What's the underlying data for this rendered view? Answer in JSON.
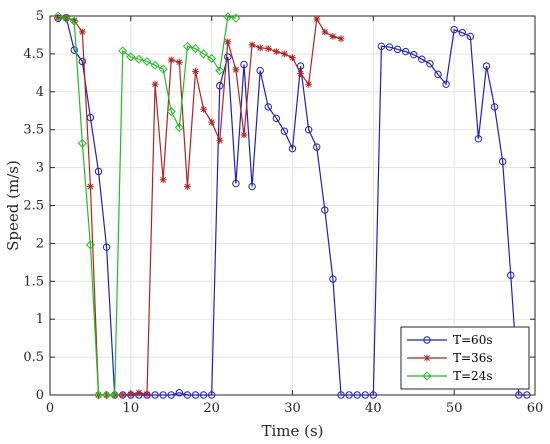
{
  "chart_data": {
    "type": "line",
    "title": "",
    "xlabel": "Time (s)",
    "ylabel": "Speed (m/s)",
    "xlim": [
      0,
      60
    ],
    "ylim": [
      0,
      5
    ],
    "xticks": [
      0,
      10,
      20,
      30,
      40,
      50,
      60
    ],
    "yticks": [
      0,
      0.5,
      1,
      1.5,
      2,
      2.5,
      3,
      3.5,
      4,
      4.5,
      5
    ],
    "xtick_labels": [
      "0",
      "10",
      "20",
      "30",
      "40",
      "50",
      "60"
    ],
    "ytick_labels": [
      "0",
      "0.5",
      "1",
      "1.5",
      "2",
      "2.5",
      "3",
      "3.5",
      "4",
      "4.5",
      "5"
    ],
    "grid": true,
    "legend_position": "bottom-right",
    "series": [
      {
        "name": "T=60s",
        "color": "#1f1fbf",
        "marker": "circle",
        "x": [
          1,
          2,
          3,
          4,
          5,
          6,
          7,
          8,
          9,
          10,
          11,
          12,
          13,
          14,
          15,
          16,
          17,
          18,
          19,
          20,
          21,
          22,
          23,
          24,
          25,
          26,
          27,
          28,
          29,
          30,
          31,
          32,
          33,
          34,
          35,
          36,
          37,
          38,
          39,
          40,
          41,
          42,
          43,
          44,
          45,
          46,
          47,
          48,
          49,
          50,
          51,
          52,
          53,
          54,
          55,
          56,
          57,
          58,
          59
        ],
        "y": [
          4.97,
          4.98,
          4.55,
          4.4,
          3.66,
          2.95,
          1.95,
          0,
          0,
          0,
          0,
          0,
          0,
          0,
          0,
          0.03,
          0,
          0,
          0,
          0,
          4.08,
          4.46,
          2.79,
          4.36,
          2.75,
          4.28,
          3.8,
          3.65,
          3.48,
          3.25,
          4.34,
          3.5,
          3.27,
          2.44,
          1.53,
          0,
          0,
          0,
          0,
          0,
          4.6,
          4.59,
          4.56,
          4.53,
          4.49,
          4.43,
          4.37,
          4.23,
          4.1,
          4.82,
          4.78,
          4.73,
          3.38,
          4.34,
          3.8,
          3.08,
          1.58,
          0,
          0
        ]
      },
      {
        "name": "T=36s",
        "color": "#b22222",
        "marker": "star",
        "x": [
          1,
          2,
          3,
          4,
          5,
          6,
          7,
          8,
          9,
          10,
          11,
          12,
          13,
          14,
          15,
          16,
          17,
          18,
          19,
          20,
          21,
          22,
          23,
          24,
          25,
          26,
          27,
          28,
          29,
          30,
          31,
          32,
          33,
          34,
          35,
          36
        ],
        "y": [
          4.98,
          4.97,
          4.94,
          4.79,
          2.75,
          0,
          0,
          0,
          0,
          0.01,
          0.03,
          0.01,
          4.1,
          2.84,
          4.42,
          4.39,
          2.75,
          4.27,
          3.77,
          3.6,
          3.36,
          4.66,
          4.29,
          3.43,
          4.62,
          4.58,
          4.57,
          4.53,
          4.5,
          4.45,
          4.24,
          4.1,
          4.96,
          4.79,
          4.73,
          4.7
        ]
      },
      {
        "name": "T=24s",
        "color": "#22bb22",
        "marker": "diamond",
        "x": [
          1,
          2,
          3,
          4,
          5,
          6,
          7,
          8,
          9,
          10,
          11,
          12,
          13,
          14,
          15,
          16,
          17,
          18,
          19,
          20,
          21,
          22,
          23
        ],
        "y": [
          5,
          4.97,
          4.93,
          3.32,
          1.98,
          0,
          0,
          0,
          4.54,
          4.46,
          4.43,
          4.4,
          4.35,
          4.3,
          3.74,
          3.53,
          4.6,
          4.57,
          4.5,
          4.44,
          4.28,
          4.99,
          4.97
        ]
      }
    ]
  }
}
